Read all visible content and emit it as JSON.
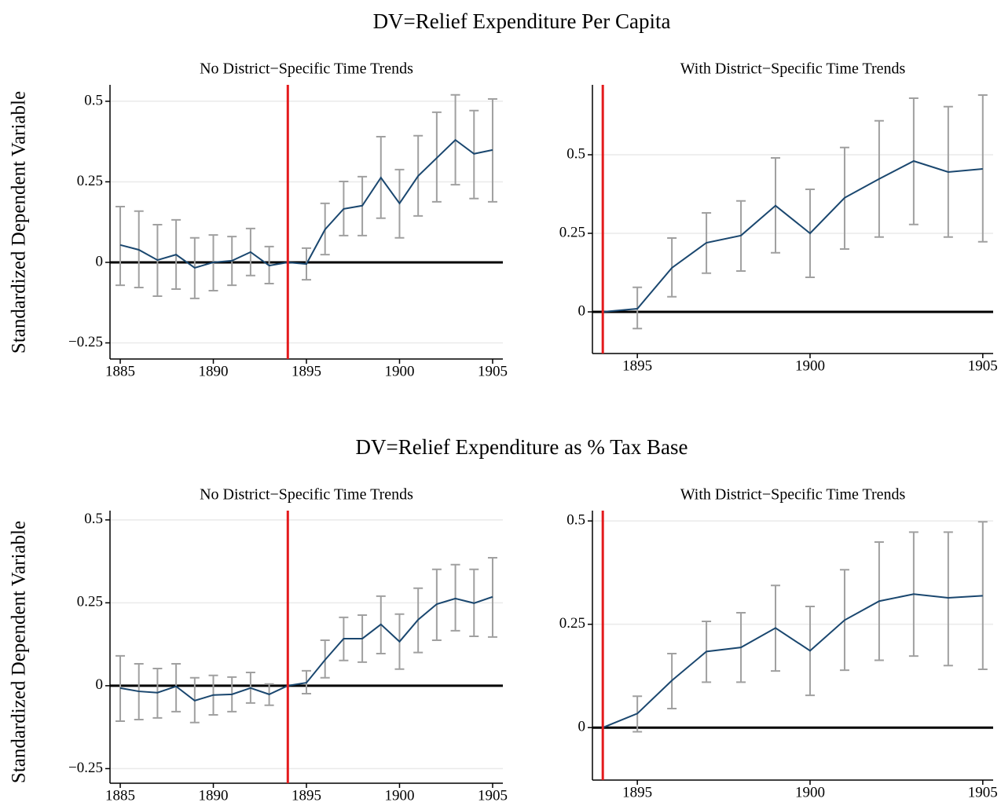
{
  "figure": {
    "rows": [
      {
        "title": "DV=Relief Expenditure Per Capita",
        "ylabel": "Standardized Dependent Variable"
      },
      {
        "title": "DV=Relief Expenditure as % Tax Base",
        "ylabel": "Standardized Dependent Variable"
      }
    ]
  },
  "chart_data": [
    {
      "type": "line",
      "title": "No District−Specific Time Trends",
      "x": [
        1885,
        1886,
        1887,
        1888,
        1889,
        1890,
        1891,
        1892,
        1893,
        1894,
        1895,
        1896,
        1897,
        1898,
        1899,
        1900,
        1901,
        1902,
        1903,
        1904,
        1905
      ],
      "series": [
        {
          "color": "#1a476f",
          "error_color": "#a0a0a0",
          "values": [
            0.054,
            0.039,
            0.007,
            0.024,
            -0.017,
            0,
            0.005,
            0.032,
            -0.01,
            0,
            -0.005,
            0.102,
            0.166,
            0.176,
            0.263,
            0.183,
            0.268,
            0.324,
            0.38,
            0.337,
            0.349
          ],
          "lower": [
            -0.071,
            -0.078,
            -0.105,
            -0.083,
            -0.112,
            -0.088,
            -0.071,
            -0.041,
            -0.066,
            null,
            -0.054,
            0.024,
            0.083,
            0.083,
            0.137,
            0.076,
            0.144,
            0.188,
            0.241,
            0.198,
            0.188
          ],
          "upper": [
            0.173,
            0.159,
            0.117,
            0.132,
            0.076,
            0.085,
            0.08,
            0.105,
            0.049,
            null,
            0.044,
            0.183,
            0.251,
            0.266,
            0.39,
            0.288,
            0.393,
            0.466,
            0.52,
            0.471,
            0.507
          ]
        }
      ],
      "vline": 1894,
      "vline_color": "#e41a1c",
      "hline": 0,
      "hline_color": "#000000",
      "grid": true,
      "xlim": [
        1884.45,
        1905.55
      ],
      "ylim": [
        -0.3,
        0.551
      ],
      "xticks": [
        1885,
        1890,
        1895,
        1900,
        1905
      ],
      "yticks": [
        {
          "value": -0.25,
          "label": "−0.25"
        },
        0,
        0.25,
        0.5
      ]
    },
    {
      "type": "line",
      "title": "With District−Specific Time Trends",
      "x": [
        1894,
        1895,
        1896,
        1897,
        1898,
        1899,
        1900,
        1901,
        1902,
        1903,
        1904,
        1905
      ],
      "series": [
        {
          "color": "#1a476f",
          "error_color": "#a0a0a0",
          "values": [
            0,
            0.01,
            0.14,
            0.22,
            0.243,
            0.338,
            0.25,
            0.363,
            0.423,
            0.48,
            0.445,
            0.455
          ],
          "lower": [
            null,
            -0.053,
            0.048,
            0.123,
            0.13,
            0.188,
            0.11,
            0.2,
            0.238,
            0.278,
            0.238,
            0.223
          ],
          "upper": [
            null,
            0.078,
            0.235,
            0.315,
            0.353,
            0.49,
            0.39,
            0.523,
            0.608,
            0.68,
            0.653,
            0.69
          ]
        }
      ],
      "vline": 1894,
      "vline_color": "#e41a1c",
      "hline": 0,
      "hline_color": "#000000",
      "grid": true,
      "xlim": [
        1893.7,
        1905.3
      ],
      "ylim": [
        -0.1325,
        0.7225
      ],
      "xticks": [
        1895,
        1900,
        1905
      ],
      "yticks": [
        0,
        0.25,
        0.5
      ]
    },
    {
      "type": "line",
      "title": "No District−Specific Time Trends",
      "x": [
        1885,
        1886,
        1887,
        1888,
        1889,
        1890,
        1891,
        1892,
        1893,
        1894,
        1895,
        1896,
        1897,
        1898,
        1899,
        1900,
        1901,
        1902,
        1903,
        1904,
        1905
      ],
      "series": [
        {
          "color": "#1a476f",
          "error_color": "#a0a0a0",
          "values": [
            -0.007,
            -0.017,
            -0.021,
            -0.002,
            -0.045,
            -0.028,
            -0.026,
            -0.007,
            -0.026,
            0,
            0.009,
            0.078,
            0.142,
            0.142,
            0.185,
            0.133,
            0.199,
            0.246,
            0.263,
            0.249,
            0.268
          ],
          "lower": [
            -0.107,
            -0.102,
            -0.097,
            -0.078,
            -0.111,
            -0.088,
            -0.078,
            -0.052,
            -0.059,
            null,
            -0.024,
            0.024,
            0.076,
            0.071,
            0.097,
            0.05,
            0.1,
            0.137,
            0.166,
            0.149,
            0.147
          ],
          "upper": [
            0.09,
            0.066,
            0.052,
            0.066,
            0.024,
            0.031,
            0.026,
            0.04,
            0.005,
            null,
            0.045,
            0.137,
            0.206,
            0.213,
            0.27,
            0.216,
            0.294,
            0.351,
            0.365,
            0.351,
            0.386
          ]
        }
      ],
      "vline": 1894,
      "vline_color": "#e41a1c",
      "hline": 0,
      "hline_color": "#000000",
      "grid": true,
      "xlim": [
        1884.45,
        1905.55
      ],
      "ylim": [
        -0.294,
        0.528
      ],
      "xticks": [
        1885,
        1890,
        1895,
        1900,
        1905
      ],
      "yticks": [
        {
          "value": -0.25,
          "label": "−0.25"
        },
        0,
        0.25,
        0.5
      ]
    },
    {
      "type": "line",
      "title": "With District−Specific Time Trends",
      "x": [
        1894,
        1895,
        1896,
        1897,
        1898,
        1899,
        1900,
        1901,
        1902,
        1903,
        1904,
        1905
      ],
      "series": [
        {
          "color": "#1a476f",
          "error_color": "#a0a0a0",
          "values": [
            0,
            0.034,
            0.114,
            0.184,
            0.194,
            0.241,
            0.186,
            0.26,
            0.306,
            0.323,
            0.314,
            0.319
          ],
          "lower": [
            null,
            -0.01,
            0.046,
            0.11,
            0.11,
            0.137,
            0.078,
            0.139,
            0.163,
            0.173,
            0.15,
            0.141
          ],
          "upper": [
            null,
            0.076,
            0.179,
            0.257,
            0.278,
            0.344,
            0.293,
            0.382,
            0.449,
            0.473,
            0.473,
            0.498
          ]
        }
      ],
      "vline": 1894,
      "vline_color": "#e41a1c",
      "hline": 0,
      "hline_color": "#000000",
      "grid": true,
      "xlim": [
        1893.7,
        1905.3
      ],
      "ylim": [
        -0.127,
        0.525
      ],
      "xticks": [
        1895,
        1900,
        1905
      ],
      "yticks": [
        0,
        0.25,
        0.5
      ]
    }
  ]
}
